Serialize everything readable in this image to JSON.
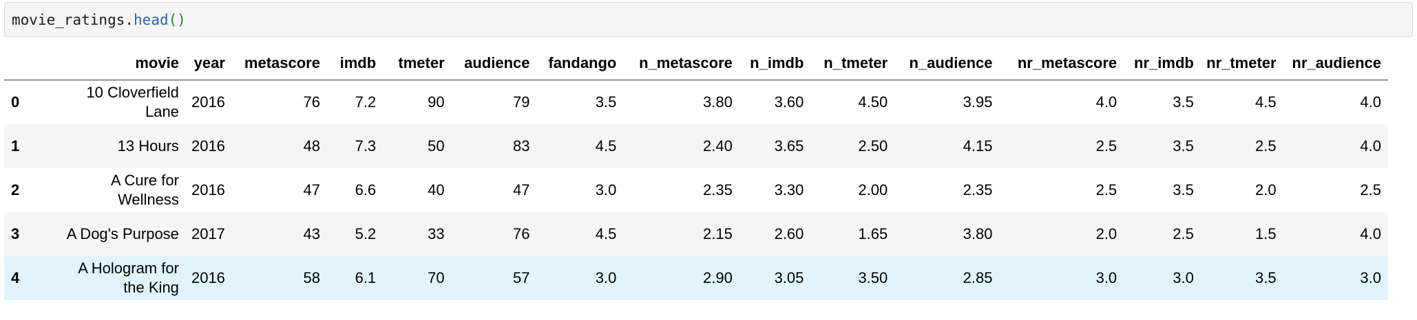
{
  "code_cell": {
    "object": "movie_ratings",
    "dot": ".",
    "method": "head",
    "parens": "()"
  },
  "table": {
    "columns": [
      "",
      "movie",
      "year",
      "metascore",
      "imdb",
      "tmeter",
      "audience",
      "fandango",
      "n_metascore",
      "n_imdb",
      "n_tmeter",
      "n_audience",
      "nr_metascore",
      "nr_imdb",
      "nr_tmeter",
      "nr_audience"
    ],
    "rows": [
      {
        "index": "0",
        "movie_line1": "10 Cloverfield",
        "movie_line2": "Lane",
        "cells": [
          "2016",
          "76",
          "7.2",
          "90",
          "79",
          "3.5",
          "3.80",
          "3.60",
          "4.50",
          "3.95",
          "4.0",
          "3.5",
          "4.5",
          "4.0"
        ]
      },
      {
        "index": "1",
        "movie_line1": "13 Hours",
        "movie_line2": "",
        "cells": [
          "2016",
          "48",
          "7.3",
          "50",
          "83",
          "4.5",
          "2.40",
          "3.65",
          "2.50",
          "4.15",
          "2.5",
          "3.5",
          "2.5",
          "4.0"
        ]
      },
      {
        "index": "2",
        "movie_line1": "A Cure for",
        "movie_line2": "Wellness",
        "cells": [
          "2016",
          "47",
          "6.6",
          "40",
          "47",
          "3.0",
          "2.35",
          "3.30",
          "2.00",
          "2.35",
          "2.5",
          "3.5",
          "2.0",
          "2.5"
        ]
      },
      {
        "index": "3",
        "movie_line1": "A Dog's Purpose",
        "movie_line2": "",
        "cells": [
          "2017",
          "43",
          "5.2",
          "33",
          "76",
          "4.5",
          "2.15",
          "2.60",
          "1.65",
          "3.80",
          "2.0",
          "2.5",
          "1.5",
          "4.0"
        ]
      },
      {
        "index": "4",
        "movie_line1": "A Hologram for",
        "movie_line2": "the King",
        "cells": [
          "2016",
          "58",
          "6.1",
          "70",
          "57",
          "3.0",
          "2.90",
          "3.05",
          "3.50",
          "2.85",
          "3.0",
          "3.0",
          "3.5",
          "3.0"
        ]
      }
    ]
  }
}
